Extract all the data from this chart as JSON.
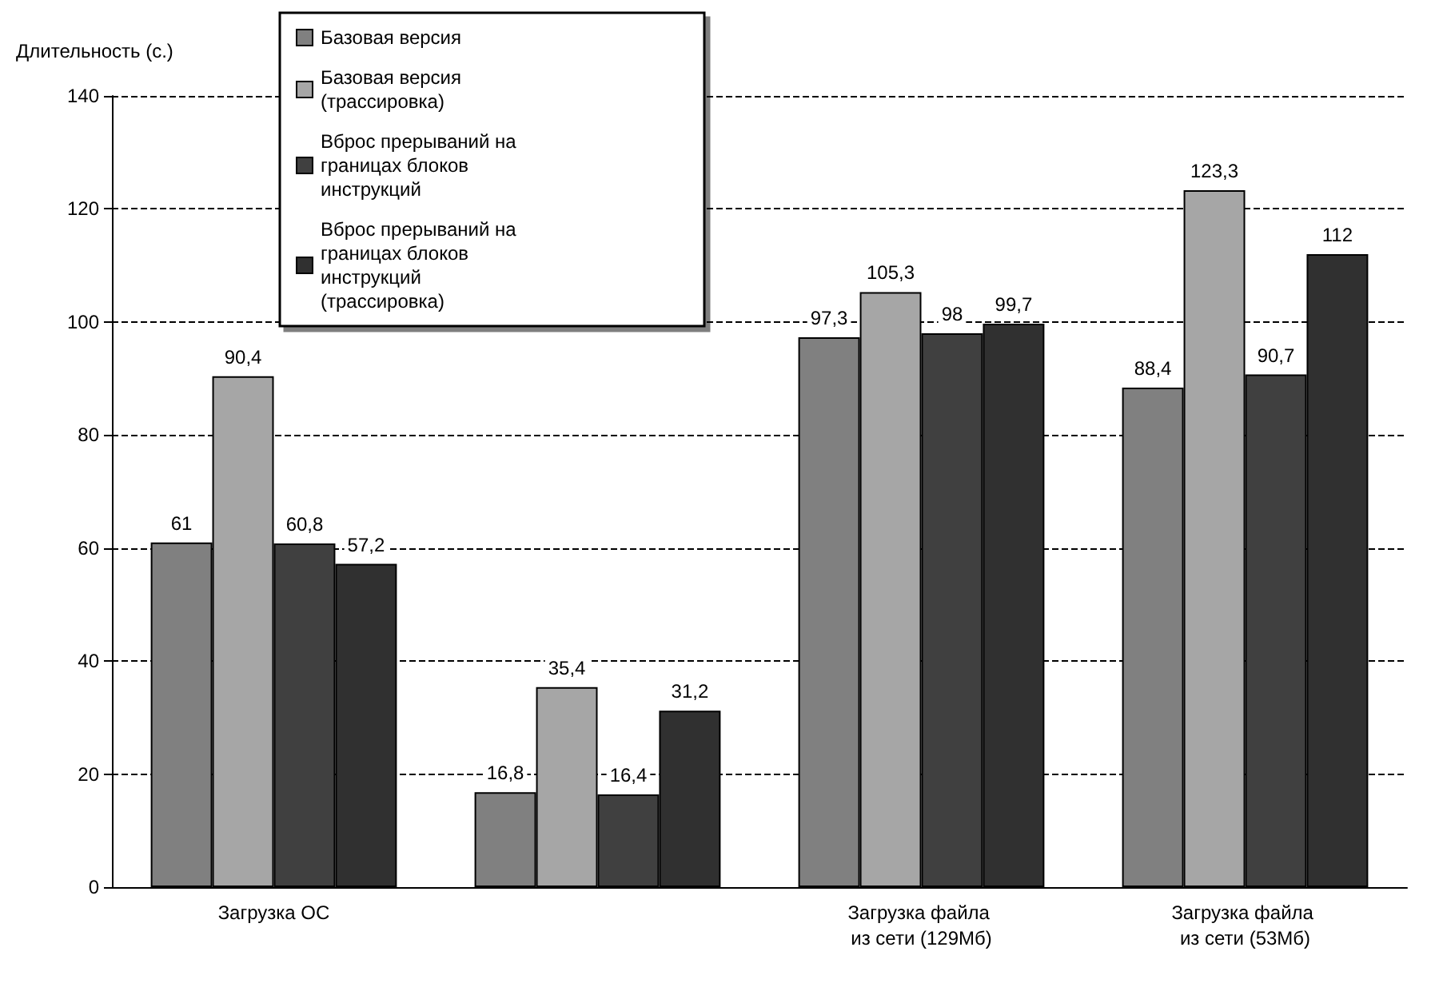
{
  "chart_data": {
    "type": "bar",
    "ylabel": "Длительность (с.)",
    "categories": [
      "Загрузка ОС",
      null,
      "Загрузка файла из сети (129Мб)",
      "Загрузка файла из сети (53Мб)"
    ],
    "series": [
      {
        "name": "Базовая версия",
        "color": "#808080",
        "values": [
          61,
          16.8,
          97.3,
          88.4
        ],
        "value_labels": [
          "61",
          "16,8",
          "97,3",
          "88,4"
        ]
      },
      {
        "name": "Базовая версия (трассировка)",
        "color": "#a6a6a6",
        "values": [
          90.4,
          35.4,
          105.3,
          123.3
        ],
        "value_labels": [
          "90,4",
          "35,4",
          "105,3",
          "123,3"
        ]
      },
      {
        "name": "Вброс прерываний на границах блоков инструкций",
        "color": "#404040",
        "values": [
          60.8,
          16.4,
          98,
          90.7
        ],
        "value_labels": [
          "60,8",
          "16,4",
          "98",
          "90,7"
        ]
      },
      {
        "name": "Вброс прерываний на границах блоков инструкций (трассировка)",
        "color": "#303030",
        "values": [
          57.2,
          31.2,
          99.7,
          112
        ],
        "value_labels": [
          "57,2",
          "31,2",
          "99,7",
          "112"
        ]
      }
    ],
    "ylim": [
      0,
      140
    ],
    "yticks": [
      0,
      20,
      40,
      60,
      80,
      100,
      120,
      140
    ],
    "grid": "y",
    "legend": "top left"
  }
}
